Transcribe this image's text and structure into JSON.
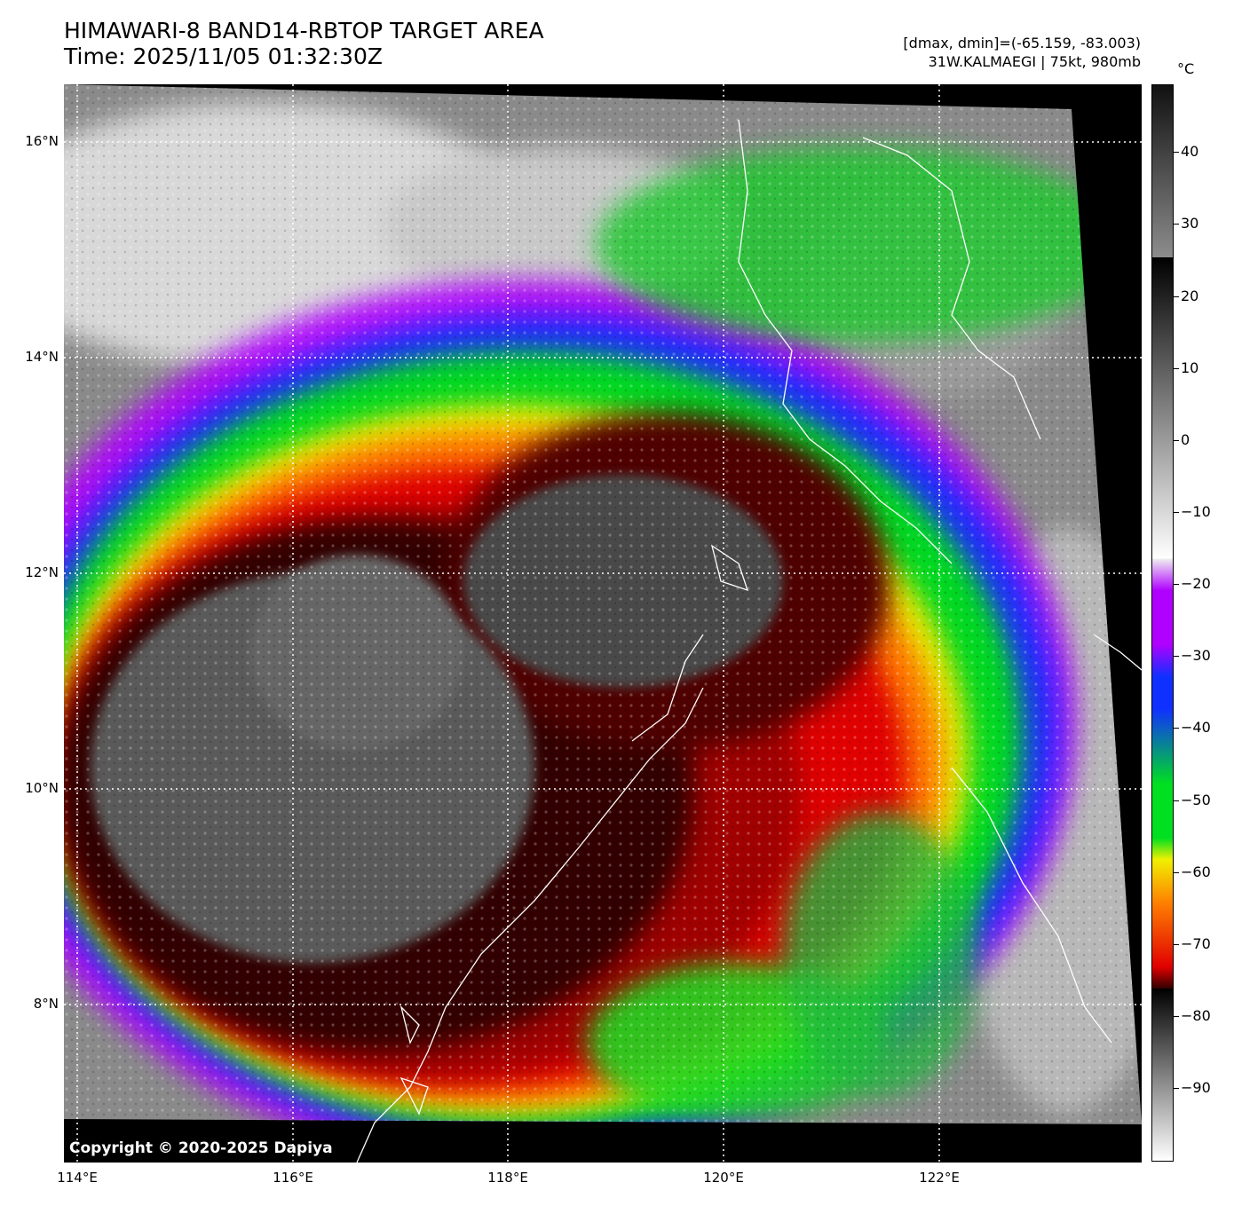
{
  "title": {
    "line1": "HIMAWARI-8 BAND14-RBTOP TARGET AREA",
    "line2": "Time: 2025/11/05 01:32:30Z"
  },
  "info": {
    "line1": "[dmax, dmin]=(-65.159, -83.003)",
    "line2": "31W.KALMAEGI | 75kt, 980mb"
  },
  "colorbar": {
    "unit": "°C",
    "ticks": [
      "40",
      "30",
      "20",
      "10",
      "0",
      "−10",
      "−20",
      "−30",
      "−40",
      "−50",
      "−60",
      "−70",
      "−80",
      "−90"
    ],
    "colors": {
      "warm_gray_top": "#111111",
      "warm_gray_bottom": "#8c8c8c",
      "light_gray": "#f0f0f0",
      "violet": "#b000ff",
      "blue": "#1030ff",
      "green": "#00e020",
      "yellow": "#f0f000",
      "orange": "#ff8000",
      "red": "#e00000",
      "dark_red": "#300000"
    }
  },
  "map": {
    "lat_labels": [
      "16°N",
      "14°N",
      "12°N",
      "10°N",
      "8°N"
    ],
    "lon_labels": [
      "114°E",
      "116°E",
      "118°E",
      "120°E",
      "122°E"
    ],
    "copyright": "Copyright © 2020-2025 Dapiya"
  }
}
